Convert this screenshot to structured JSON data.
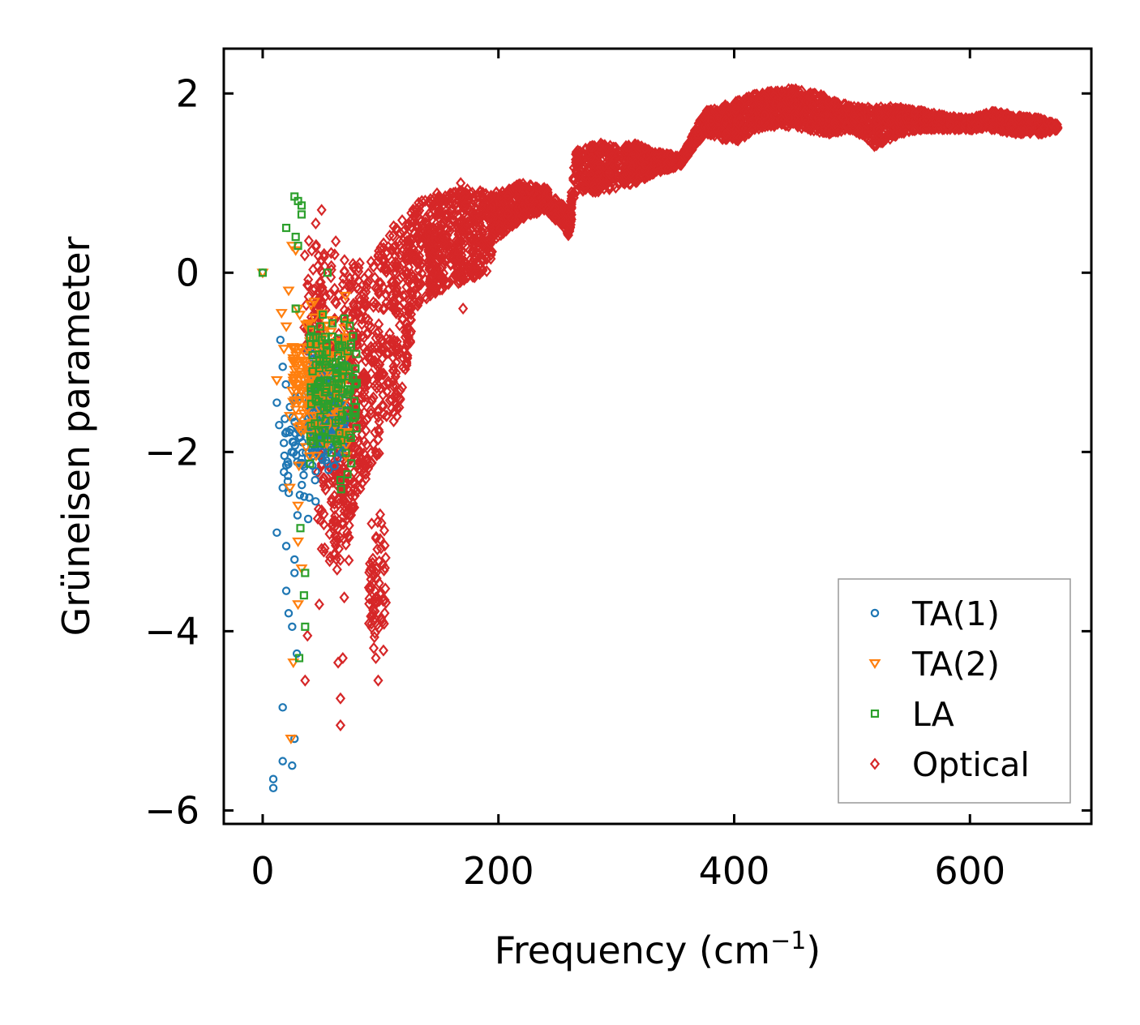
{
  "chart_data": {
    "type": "scatter",
    "title": "",
    "xlabel": "Frequency (cm",
    "xlabel_superscript": "−1",
    "xlabel_close": ")",
    "ylabel": "Grüneisen parameter",
    "xlim": [
      -33,
      703
    ],
    "ylim": [
      -6.15,
      2.5
    ],
    "xticks": [
      0,
      200,
      400,
      600
    ],
    "xtick_labels": [
      "0",
      "200",
      "400",
      "600"
    ],
    "yticks": [
      2,
      0,
      -2,
      -4,
      -6
    ],
    "ytick_labels": [
      "2",
      "0",
      "−2",
      "−4",
      "−6"
    ],
    "grid": false,
    "legend_position": "lower-right",
    "series": [
      {
        "name": "TA(1)",
        "marker": "circle",
        "color": "#1f77b4",
        "clusters": [
          {
            "x": [
              38,
              70
            ],
            "y": [
              -2.4,
              -0.7
            ],
            "n": 260
          },
          {
            "x": [
              18,
              45
            ],
            "y": [
              -3.2,
              -0.8
            ],
            "n": 60
          }
        ],
        "outliers": [
          [
            0,
            0
          ],
          [
            15,
            -0.75
          ],
          [
            17,
            -1.05
          ],
          [
            12,
            -1.45
          ],
          [
            14,
            -1.7
          ],
          [
            18,
            -1.9
          ],
          [
            20,
            -2.15
          ],
          [
            17,
            -2.4
          ],
          [
            12,
            -2.9
          ],
          [
            20,
            -3.05
          ],
          [
            27,
            -3.2
          ],
          [
            27,
            -3.35
          ],
          [
            20,
            -3.55
          ],
          [
            22,
            -3.8
          ],
          [
            25,
            -3.95
          ],
          [
            29,
            -4.25
          ],
          [
            17,
            -4.85
          ],
          [
            27,
            -5.2
          ],
          [
            17,
            -5.45
          ],
          [
            25,
            -5.5
          ],
          [
            9,
            -5.65
          ],
          [
            9,
            -5.75
          ]
        ]
      },
      {
        "name": "TA(2)",
        "marker": "triangle-down",
        "color": "#ff7f0e",
        "clusters": [
          {
            "x": [
              25,
              72
            ],
            "y": [
              -2.4,
              0.0
            ],
            "n": 200
          }
        ],
        "outliers": [
          [
            0,
            0
          ],
          [
            25,
            0.3
          ],
          [
            28,
            0.25
          ],
          [
            22,
            -0.2
          ],
          [
            16,
            -0.45
          ],
          [
            20,
            -0.6
          ],
          [
            18,
            -0.85
          ],
          [
            12,
            -1.2
          ],
          [
            23,
            -1.6
          ],
          [
            23,
            -2.4
          ],
          [
            30,
            -2.6
          ],
          [
            30,
            -3.0
          ],
          [
            33,
            -3.3
          ],
          [
            30,
            -3.7
          ],
          [
            26,
            -4.35
          ],
          [
            24,
            -5.2
          ]
        ]
      },
      {
        "name": "LA",
        "marker": "square",
        "color": "#2ca02c",
        "clusters": [
          {
            "x": [
              40,
              80
            ],
            "y": [
              -2.6,
              0.0
            ],
            "n": 140
          }
        ],
        "outliers": [
          [
            0,
            0
          ],
          [
            27,
            0.85
          ],
          [
            30,
            0.8
          ],
          [
            33,
            0.75
          ],
          [
            33,
            0.65
          ],
          [
            20,
            0.5
          ],
          [
            28,
            0.4
          ],
          [
            30,
            0.3
          ],
          [
            55,
            0.0
          ],
          [
            28,
            -0.4
          ],
          [
            32,
            -2.85
          ],
          [
            36,
            -3.35
          ],
          [
            35,
            -3.6
          ],
          [
            36,
            -3.95
          ],
          [
            31,
            -4.3
          ],
          [
            72,
            -1.3
          ],
          [
            72,
            -2.25
          ]
        ]
      },
      {
        "name": "Optical",
        "marker": "diamond",
        "color": "#d62728",
        "band": [
          [
            45,
            -3.0,
            0.3
          ],
          [
            65,
            -3.4,
            0.2
          ],
          [
            80,
            -2.5,
            0.1
          ],
          [
            100,
            -2.0,
            0.3
          ],
          [
            115,
            -1.6,
            0.6
          ],
          [
            130,
            -0.4,
            0.8
          ],
          [
            150,
            -0.2,
            0.9
          ],
          [
            170,
            -0.1,
            0.95
          ],
          [
            190,
            0.0,
            0.9
          ],
          [
            200,
            0.4,
            0.9
          ],
          [
            220,
            0.6,
            1.0
          ],
          [
            240,
            0.7,
            0.95
          ],
          [
            255,
            0.5,
            0.75
          ],
          [
            260,
            0.4,
            0.6
          ],
          [
            265,
            0.9,
            1.35
          ],
          [
            285,
            0.9,
            1.45
          ],
          [
            300,
            0.95,
            1.4
          ],
          [
            318,
            1.0,
            1.45
          ],
          [
            330,
            1.1,
            1.35
          ],
          [
            355,
            1.2,
            1.3
          ],
          [
            375,
            1.55,
            1.8
          ],
          [
            400,
            1.45,
            1.9
          ],
          [
            420,
            1.6,
            2.0
          ],
          [
            440,
            1.65,
            2.05
          ],
          [
            460,
            1.6,
            2.05
          ],
          [
            480,
            1.55,
            1.95
          ],
          [
            500,
            1.6,
            1.85
          ],
          [
            520,
            1.4,
            1.85
          ],
          [
            540,
            1.55,
            1.85
          ],
          [
            560,
            1.6,
            1.8
          ],
          [
            580,
            1.6,
            1.75
          ],
          [
            600,
            1.6,
            1.72
          ],
          [
            620,
            1.6,
            1.8
          ],
          [
            640,
            1.55,
            1.75
          ],
          [
            660,
            1.55,
            1.72
          ],
          [
            675,
            1.6,
            1.65
          ]
        ],
        "clusters": [
          {
            "x": [
              35,
              60
            ],
            "y": [
              -2.0,
              0.7
            ],
            "n": 60
          },
          {
            "x": [
              60,
              75
            ],
            "y": [
              -3.8,
              -1.0
            ],
            "n": 70
          },
          {
            "x": [
              90,
              105
            ],
            "y": [
              -4.5,
              -2.4
            ],
            "n": 70
          }
        ],
        "outliers": [
          [
            50,
            0.7
          ],
          [
            45,
            0.55
          ],
          [
            62,
            0.35
          ],
          [
            38,
            -4.05
          ],
          [
            36,
            -4.55
          ],
          [
            48,
            -3.7
          ],
          [
            64,
            -4.35
          ],
          [
            68,
            -4.3
          ],
          [
            66,
            -4.75
          ],
          [
            66,
            -5.05
          ],
          [
            98,
            -4.55
          ],
          [
            96,
            -4.3
          ],
          [
            168,
            1.0
          ],
          [
            170,
            -0.4
          ]
        ]
      }
    ]
  }
}
